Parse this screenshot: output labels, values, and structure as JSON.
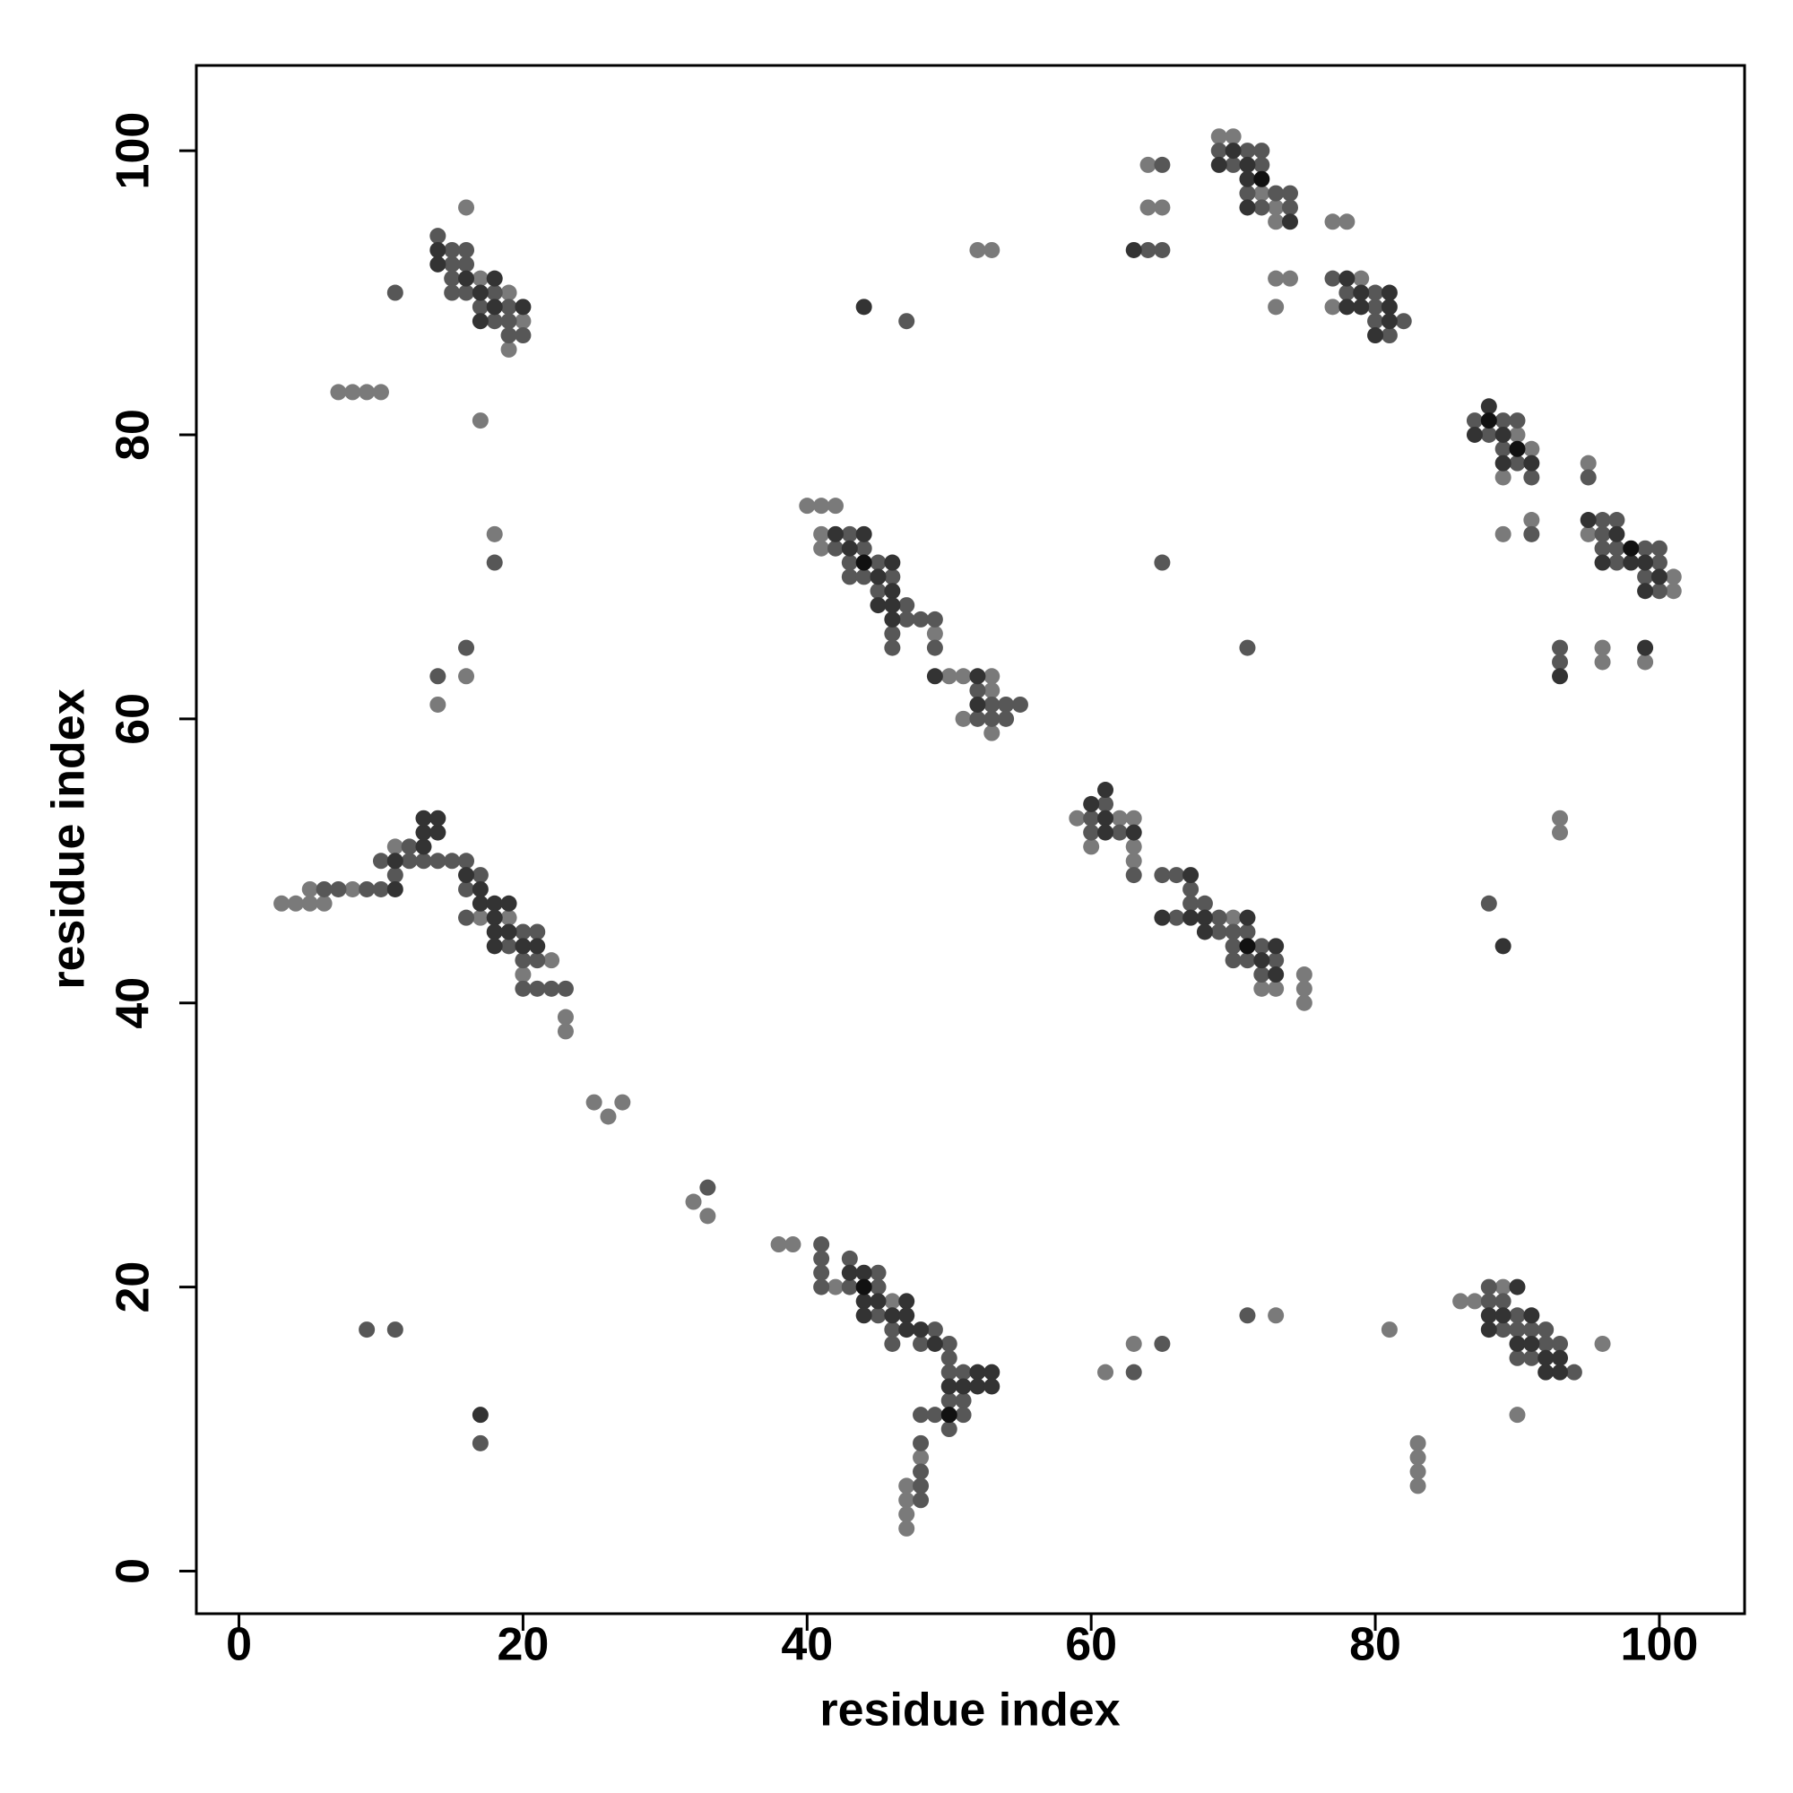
{
  "chart_data": {
    "type": "scatter",
    "xlabel": "residue index",
    "ylabel": "residue index",
    "xlim": [
      -3,
      106
    ],
    "ylim": [
      -3,
      106
    ],
    "xticks": [
      0,
      20,
      40,
      60,
      80,
      100
    ],
    "yticks": [
      0,
      20,
      40,
      60,
      80,
      100
    ],
    "series": [
      {
        "color": "#7a7a7a",
        "x": [
          16,
          17,
          19,
          20,
          19,
          7,
          8,
          9,
          10,
          17,
          18,
          16,
          14,
          3,
          4,
          5,
          6,
          5,
          8,
          11,
          17,
          19,
          22,
          20,
          23,
          23,
          25,
          26,
          27,
          32,
          33,
          38,
          39,
          42,
          46,
          48,
          47,
          47,
          47,
          47,
          40,
          41,
          42,
          41,
          41,
          49,
          50,
          51,
          53,
          53,
          51,
          53,
          52,
          53,
          59,
          62,
          63,
          60,
          63,
          63,
          70,
          75,
          72,
          73,
          75,
          75,
          61,
          63,
          73,
          64,
          64,
          65,
          69,
          70,
          72,
          73,
          73,
          77,
          78,
          73,
          74,
          73,
          79,
          77,
          90,
          91,
          89,
          95,
          91,
          89,
          95,
          101,
          101,
          96,
          96,
          99,
          93,
          93,
          86,
          87,
          89,
          96,
          90,
          81,
          83,
          83,
          83,
          83
        ],
        "values": [
          96,
          91,
          90,
          88,
          86,
          83,
          83,
          83,
          83,
          81,
          73,
          63,
          61,
          47,
          47,
          47,
          47,
          48,
          48,
          51,
          46,
          46,
          43,
          42,
          39,
          38,
          33,
          32,
          33,
          26,
          25,
          23,
          23,
          20,
          19,
          8,
          6,
          5,
          4,
          3,
          75,
          75,
          75,
          73,
          72,
          66,
          63,
          63,
          63,
          62,
          60,
          59,
          93,
          93,
          53,
          53,
          53,
          51,
          51,
          50,
          46,
          42,
          41,
          41,
          41,
          40,
          14,
          16,
          18,
          99,
          96,
          96,
          101,
          101,
          97,
          96,
          95,
          95,
          95,
          91,
          91,
          89,
          91,
          89,
          80,
          79,
          77,
          78,
          74,
          73,
          73,
          70,
          69,
          65,
          64,
          64,
          53,
          52,
          19,
          19,
          20,
          16,
          11,
          17,
          9,
          8,
          7,
          6
        ]
      },
      {
        "color": "#575757",
        "x": [
          14,
          15,
          16,
          15,
          16,
          15,
          15,
          16,
          18,
          17,
          19,
          18,
          19,
          19,
          20,
          11,
          18,
          16,
          14,
          6,
          7,
          9,
          10,
          11,
          10,
          12,
          13,
          14,
          15,
          16,
          12,
          17,
          16,
          16,
          20,
          21,
          19,
          20,
          21,
          20,
          21,
          22,
          23,
          33,
          9,
          11,
          17,
          41,
          41,
          43,
          41,
          45,
          41,
          43,
          45,
          45,
          46,
          49,
          46,
          48,
          50,
          50,
          50,
          51,
          50,
          51,
          48,
          49,
          51,
          50,
          48,
          48,
          48,
          48,
          43,
          42,
          44,
          43,
          45,
          43,
          44,
          46,
          45,
          47,
          47,
          48,
          49,
          46,
          46,
          49,
          52,
          53,
          54,
          55,
          52,
          53,
          54,
          47,
          61,
          60,
          60,
          62,
          63,
          65,
          66,
          67,
          67,
          68,
          66,
          69,
          69,
          70,
          71,
          70,
          72,
          70,
          71,
          73,
          72,
          63,
          65,
          71,
          65,
          71,
          65,
          64,
          65,
          69,
          71,
          72,
          70,
          72,
          71,
          73,
          74,
          72,
          74,
          77,
          80,
          78,
          80,
          80,
          82,
          81,
          87,
          89,
          90,
          88,
          89,
          90,
          91,
          95,
          91,
          96,
          97,
          96,
          96,
          97,
          99,
          100,
          97,
          100,
          99,
          100,
          93,
          93,
          88,
          88,
          88,
          89,
          90,
          89,
          90,
          91,
          92,
          92,
          93,
          90,
          91,
          94
        ],
        "values": [
          94,
          93,
          93,
          92,
          92,
          91,
          90,
          90,
          90,
          89,
          89,
          88,
          88,
          87,
          87,
          90,
          71,
          65,
          63,
          48,
          48,
          48,
          48,
          49,
          50,
          50,
          50,
          50,
          50,
          50,
          51,
          49,
          48,
          46,
          45,
          45,
          44,
          43,
          43,
          41,
          41,
          41,
          41,
          27,
          17,
          17,
          9,
          23,
          22,
          22,
          21,
          21,
          20,
          20,
          20,
          18,
          17,
          17,
          16,
          16,
          16,
          15,
          14,
          14,
          12,
          12,
          11,
          11,
          11,
          10,
          9,
          7,
          6,
          5,
          73,
          72,
          72,
          71,
          71,
          70,
          70,
          70,
          69,
          68,
          67,
          67,
          67,
          66,
          65,
          65,
          62,
          61,
          61,
          61,
          60,
          60,
          60,
          88,
          54,
          53,
          52,
          52,
          49,
          49,
          49,
          48,
          47,
          47,
          46,
          46,
          45,
          45,
          45,
          44,
          44,
          43,
          43,
          43,
          42,
          14,
          16,
          18,
          71,
          65,
          99,
          93,
          93,
          100,
          100,
          100,
          99,
          99,
          97,
          97,
          97,
          96,
          96,
          91,
          89,
          90,
          90,
          88,
          88,
          87,
          81,
          81,
          81,
          80,
          79,
          78,
          77,
          77,
          73,
          74,
          74,
          73,
          72,
          72,
          72,
          72,
          71,
          71,
          70,
          69,
          65,
          64,
          47,
          20,
          19,
          19,
          18,
          17,
          17,
          17,
          17,
          16,
          16,
          15,
          15,
          14
        ]
      },
      {
        "color": "#333333",
        "x": [
          14,
          14,
          16,
          18,
          17,
          18,
          20,
          17,
          11,
          11,
          13,
          13,
          14,
          13,
          14,
          16,
          17,
          17,
          18,
          19,
          18,
          18,
          19,
          18,
          20,
          21,
          17,
          43,
          44,
          44,
          45,
          47,
          44,
          46,
          47,
          47,
          48,
          49,
          52,
          53,
          50,
          51,
          52,
          53,
          42,
          44,
          43,
          46,
          45,
          46,
          45,
          46,
          46,
          49,
          52,
          52,
          44,
          61,
          60,
          61,
          61,
          63,
          67,
          65,
          67,
          68,
          71,
          68,
          73,
          72,
          73,
          63,
          70,
          69,
          71,
          71,
          71,
          74,
          78,
          78,
          79,
          81,
          79,
          81,
          81,
          80,
          88,
          87,
          89,
          89,
          91,
          95,
          97,
          96,
          98,
          99,
          100,
          99,
          93,
          99,
          89,
          90,
          88,
          89,
          91,
          88,
          90,
          91,
          92,
          93,
          92,
          93
        ],
        "values": [
          93,
          92,
          91,
          91,
          90,
          89,
          89,
          88,
          48,
          50,
          51,
          52,
          52,
          53,
          53,
          49,
          48,
          47,
          47,
          47,
          46,
          45,
          45,
          44,
          44,
          44,
          11,
          21,
          21,
          19,
          19,
          19,
          18,
          18,
          18,
          17,
          17,
          16,
          14,
          14,
          13,
          13,
          13,
          13,
          73,
          73,
          72,
          71,
          70,
          69,
          68,
          68,
          67,
          63,
          63,
          61,
          89,
          55,
          54,
          53,
          52,
          52,
          49,
          46,
          46,
          46,
          46,
          45,
          44,
          43,
          42,
          93,
          100,
          99,
          99,
          98,
          96,
          95,
          91,
          89,
          89,
          89,
          90,
          90,
          88,
          87,
          82,
          80,
          80,
          78,
          78,
          74,
          73,
          71,
          71,
          71,
          70,
          69,
          63,
          65,
          44,
          20,
          18,
          18,
          18,
          17,
          16,
          16,
          15,
          15,
          14,
          14
        ]
      },
      {
        "color": "#111111",
        "x": [
          44,
          50,
          44,
          72,
          71,
          88,
          90,
          98
        ],
        "values": [
          20,
          11,
          71,
          98,
          44,
          81,
          79,
          72
        ]
      }
    ]
  }
}
